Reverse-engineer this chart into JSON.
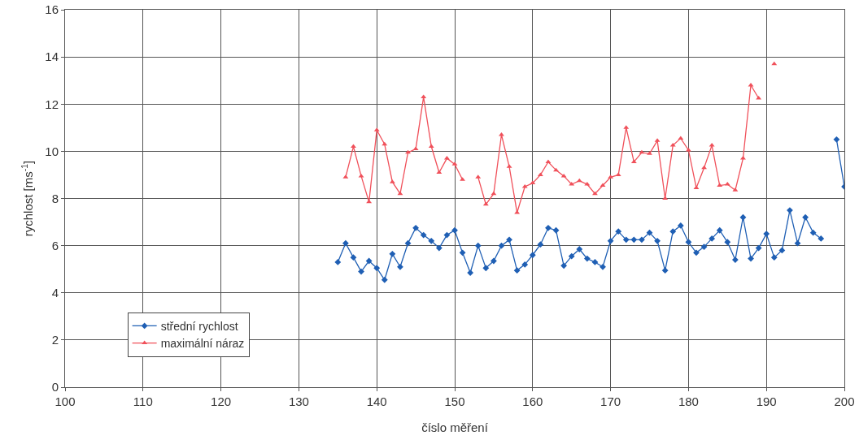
{
  "chart_data": {
    "type": "line",
    "xlabel": "číslo měření",
    "ylabel": "rychlost [ms$^{-1}$]",
    "x": [
      135,
      136,
      137,
      138,
      139,
      140,
      141,
      142,
      143,
      144,
      145,
      146,
      147,
      148,
      149,
      150,
      151,
      152,
      153,
      154,
      155,
      156,
      157,
      158,
      159,
      160,
      161,
      162,
      163,
      164,
      165,
      166,
      167,
      168,
      169,
      170,
      171,
      172,
      173,
      174,
      175,
      176,
      177,
      178,
      179,
      180,
      181,
      182,
      183,
      184,
      185,
      186,
      187,
      188,
      189,
      190,
      191,
      192,
      193,
      194,
      195,
      196,
      197,
      198,
      199,
      200
    ],
    "series": [
      {
        "name": "střední rychlost",
        "color": "#1f5fb4",
        "marker": "diamond",
        "values": [
          5.3,
          6.1,
          5.5,
          4.9,
          5.35,
          5.05,
          4.55,
          5.65,
          5.1,
          6.1,
          6.75,
          6.45,
          6.2,
          5.9,
          6.45,
          6.65,
          5.7,
          4.85,
          6.0,
          5.05,
          5.35,
          6.0,
          6.25,
          4.95,
          5.2,
          5.6,
          6.05,
          6.75,
          6.65,
          5.15,
          5.55,
          5.85,
          5.45,
          5.3,
          5.1,
          6.2,
          6.6,
          6.25,
          6.25,
          6.25,
          6.55,
          6.2,
          4.95,
          6.6,
          6.85,
          6.15,
          5.7,
          5.95,
          6.3,
          6.65,
          6.15,
          5.4,
          7.2,
          5.45,
          5.9,
          6.5,
          5.5,
          5.8,
          7.5,
          6.1,
          7.2,
          6.55,
          6.3,
          null,
          10.5,
          8.5
        ]
      },
      {
        "name": "maximální náraz",
        "color": "#f0505a",
        "marker": "triangle",
        "values": [
          null,
          8.9,
          10.2,
          8.95,
          7.85,
          10.9,
          10.3,
          8.7,
          8.2,
          9.95,
          10.1,
          12.3,
          10.2,
          9.1,
          9.7,
          9.45,
          8.8,
          null,
          8.9,
          7.75,
          8.2,
          10.7,
          9.35,
          7.4,
          8.5,
          8.65,
          9.0,
          9.55,
          9.2,
          8.95,
          8.6,
          8.75,
          8.6,
          8.2,
          8.55,
          8.9,
          9.0,
          11.0,
          9.55,
          9.95,
          9.9,
          10.45,
          8.0,
          10.25,
          10.55,
          10.05,
          8.45,
          9.3,
          10.25,
          8.55,
          8.6,
          8.35,
          9.7,
          12.8,
          12.25,
          null,
          13.7,
          null,
          null,
          null,
          null,
          null,
          null,
          null,
          null,
          null
        ]
      }
    ],
    "xlim": [
      100,
      200
    ],
    "xticks": [
      100,
      110,
      120,
      130,
      140,
      150,
      160,
      170,
      180,
      190,
      200
    ],
    "ylim": [
      0,
      16
    ],
    "yticks": [
      0,
      2,
      4,
      6,
      8,
      10,
      12,
      14,
      16
    ],
    "grid": true,
    "legend": "bottom left",
    "line_style": "solid"
  }
}
